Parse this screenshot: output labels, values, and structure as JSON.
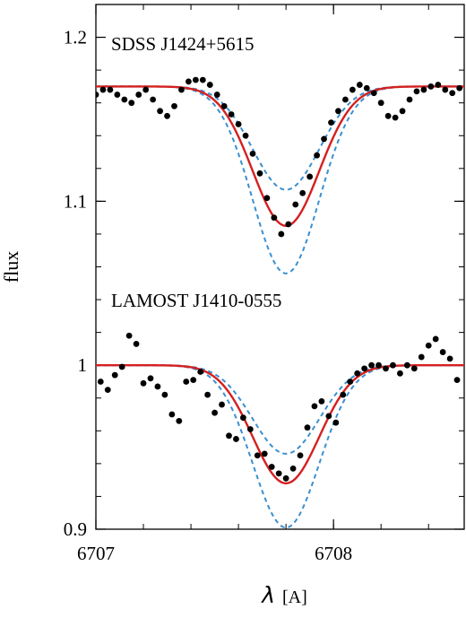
{
  "chart_data": {
    "type": "line",
    "xlabel_symbol": "λ",
    "xlabel_unit": "[A]",
    "ylabel": "flux",
    "xlim": [
      6707.0,
      6708.55
    ],
    "ylim": [
      0.9,
      1.22
    ],
    "x_ticks": [
      6707,
      6708
    ],
    "x_tick_labels": [
      "6707",
      "6708"
    ],
    "y_ticks": [
      0.9,
      1.0,
      1.1,
      1.2
    ],
    "y_tick_labels": [
      "0.9",
      "1",
      "1.1",
      "1.2"
    ],
    "grid": false,
    "colors": {
      "fit": "#d42020",
      "bounds": "#3a8fd0",
      "data": "#000000",
      "axis": "#000000"
    },
    "panels": [
      {
        "annotation": "SDSS J1424+5615",
        "continuum": 1.17,
        "line_center": 6707.8,
        "fit_min": 1.085,
        "upper_bound_min": 1.107,
        "lower_bound_min": 1.056,
        "x": [
          6707.0,
          6707.03,
          6707.06,
          6707.09,
          6707.12,
          6707.15,
          6707.18,
          6707.21,
          6707.24,
          6707.27,
          6707.3,
          6707.33,
          6707.36,
          6707.39,
          6707.42,
          6707.45,
          6707.48,
          6707.51,
          6707.54,
          6707.57,
          6707.6,
          6707.63,
          6707.66,
          6707.69,
          6707.72,
          6707.75,
          6707.78,
          6707.81,
          6707.84,
          6707.87,
          6707.9,
          6707.93,
          6707.96,
          6707.99,
          6708.02,
          6708.05,
          6708.08,
          6708.11,
          6708.14,
          6708.17,
          6708.2,
          6708.23,
          6708.26,
          6708.29,
          6708.32,
          6708.35,
          6708.38,
          6708.41,
          6708.44,
          6708.47,
          6708.5,
          6708.53
        ],
        "y": [
          1.165,
          1.168,
          1.168,
          1.165,
          1.162,
          1.16,
          1.165,
          1.168,
          1.162,
          1.155,
          1.152,
          1.158,
          1.168,
          1.173,
          1.174,
          1.174,
          1.171,
          1.165,
          1.158,
          1.153,
          1.147,
          1.14,
          1.129,
          1.117,
          1.102,
          1.09,
          1.08,
          1.086,
          1.098,
          1.105,
          1.115,
          1.128,
          1.138,
          1.148,
          1.155,
          1.162,
          1.168,
          1.171,
          1.169,
          1.166,
          1.16,
          1.152,
          1.151,
          1.155,
          1.162,
          1.167,
          1.168,
          1.17,
          1.171,
          1.168,
          1.166,
          1.169
        ]
      },
      {
        "annotation": "LAMOST J1410-0555",
        "continuum": 1.0,
        "line_center": 6707.8,
        "fit_min": 0.928,
        "upper_bound_min": 0.946,
        "lower_bound_min": 0.901,
        "x": [
          6707.02,
          6707.05,
          6707.08,
          6707.11,
          6707.14,
          6707.17,
          6707.2,
          6707.23,
          6707.26,
          6707.29,
          6707.32,
          6707.35,
          6707.38,
          6707.41,
          6707.44,
          6707.47,
          6707.5,
          6707.53,
          6707.56,
          6707.59,
          6707.62,
          6707.65,
          6707.68,
          6707.71,
          6707.74,
          6707.77,
          6707.8,
          6707.83,
          6707.86,
          6707.89,
          6707.92,
          6707.95,
          6707.98,
          6708.01,
          6708.04,
          6708.07,
          6708.1,
          6708.13,
          6708.16,
          6708.19,
          6708.22,
          6708.25,
          6708.28,
          6708.31,
          6708.34,
          6708.37,
          6708.4,
          6708.43,
          6708.46,
          6708.49,
          6708.52
        ],
        "y": [
          0.99,
          0.985,
          0.994,
          0.999,
          1.018,
          1.013,
          0.989,
          0.992,
          0.987,
          0.982,
          0.97,
          0.966,
          0.99,
          0.991,
          0.996,
          0.982,
          0.971,
          0.976,
          0.957,
          0.955,
          0.968,
          0.961,
          0.945,
          0.946,
          0.938,
          0.934,
          0.931,
          0.937,
          0.945,
          0.962,
          0.975,
          0.978,
          0.969,
          0.965,
          0.982,
          0.99,
          0.995,
          0.998,
          1.0,
          1.0,
          0.998,
          1.0,
          0.995,
          1.0,
          0.998,
          1.005,
          1.012,
          1.016,
          1.008,
          1.004,
          0.991
        ]
      }
    ]
  }
}
